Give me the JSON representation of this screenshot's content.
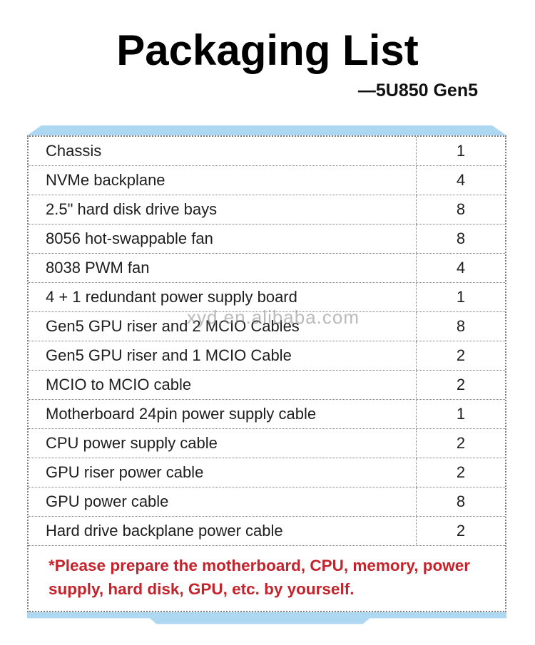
{
  "page": {
    "title": "Packaging List",
    "subtitle": "—5U850 Gen5",
    "watermark": "xyd.en.alibaba.com",
    "accent_color": "#aed7f2",
    "note_color": "#c4232b",
    "note": "*Please prepare the motherboard, CPU, memory, power supply, hard disk, GPU, etc. by yourself."
  },
  "table": {
    "columns": [
      "item",
      "quantity"
    ],
    "rows": [
      {
        "item": "Chassis",
        "qty": "1"
      },
      {
        "item": "NVMe backplane",
        "qty": "4"
      },
      {
        "item": "2.5\" hard disk drive bays",
        "qty": "8"
      },
      {
        "item": "8056 hot-swappable fan",
        "qty": "8"
      },
      {
        "item": "8038 PWM fan",
        "qty": "4"
      },
      {
        "item": "4 + 1 redundant power supply board",
        "qty": "1"
      },
      {
        "item": "Gen5 GPU riser and 2 MCIO Cables",
        "qty": "8"
      },
      {
        "item": "Gen5 GPU riser and 1 MCIO Cable",
        "qty": "2"
      },
      {
        "item": "MCIO to MCIO cable",
        "qty": "2"
      },
      {
        "item": "Motherboard 24pin power supply cable",
        "qty": "1"
      },
      {
        "item": "CPU power supply cable",
        "qty": "2"
      },
      {
        "item": "GPU riser power cable",
        "qty": "2"
      },
      {
        "item": "GPU power cable",
        "qty": "8"
      },
      {
        "item": "Hard drive backplane power cable",
        "qty": "2"
      }
    ]
  }
}
